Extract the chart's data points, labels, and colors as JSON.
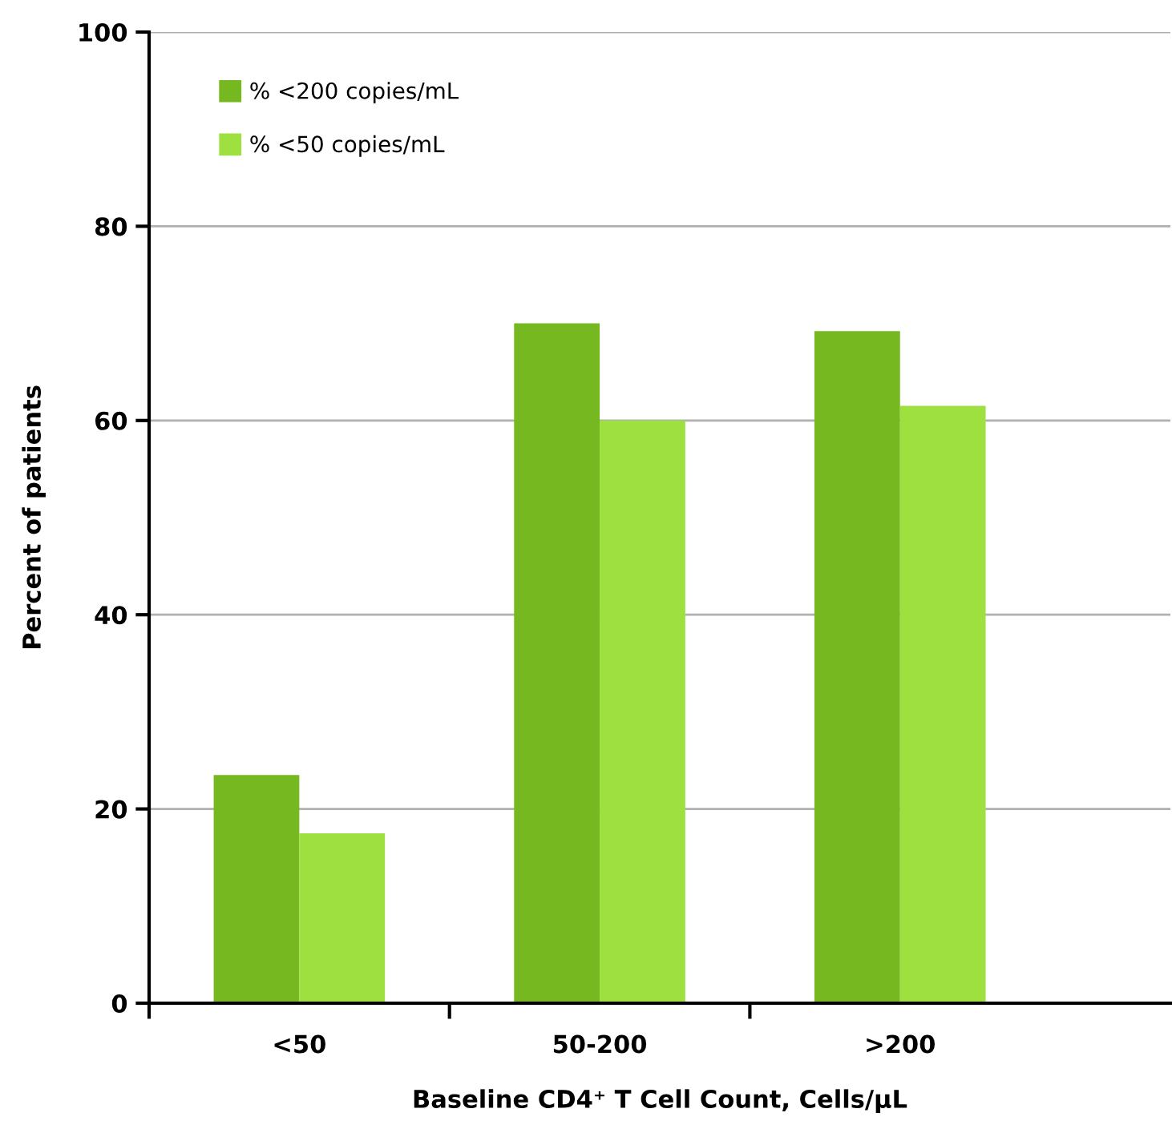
{
  "chart_data": {
    "type": "bar",
    "xlabel": "Baseline CD4⁺ T Cell Count, Cells/µL",
    "ylabel": "Percent of patients",
    "categories": [
      "<50",
      "50-200",
      ">200"
    ],
    "series": [
      {
        "name": "% <200 copies/mL",
        "color": "#76b820",
        "values": [
          23.5,
          70,
          69.2
        ]
      },
      {
        "name": "% <50 copies/mL",
        "color": "#9ee040",
        "values": [
          17.5,
          60,
          61.5
        ]
      }
    ],
    "ylim": [
      0,
      100
    ],
    "yticks": [
      0,
      20,
      40,
      60,
      80,
      100
    ],
    "grid": "y",
    "legend": "top left"
  }
}
